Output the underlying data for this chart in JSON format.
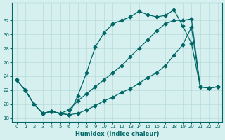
{
  "xlabel": "Humidex (Indice chaleur)",
  "background_color": "#d6f0f0",
  "line_color": "#006666",
  "grid_color": "#b8dada",
  "xlim": [
    -0.5,
    23.5
  ],
  "ylim": [
    17.5,
    34.5
  ],
  "xticks": [
    0,
    1,
    2,
    3,
    4,
    5,
    6,
    7,
    8,
    9,
    10,
    11,
    12,
    13,
    14,
    15,
    16,
    17,
    18,
    19,
    20,
    21,
    22,
    23
  ],
  "yticks": [
    18,
    20,
    22,
    24,
    26,
    28,
    30,
    32
  ],
  "line1_x": [
    0,
    1,
    2,
    3,
    4,
    5,
    6,
    7,
    8,
    9,
    10,
    11,
    12,
    13,
    14,
    15,
    16,
    17,
    18,
    19,
    20,
    21,
    22,
    23
  ],
  "line1_y": [
    23.5,
    22.0,
    20.0,
    18.7,
    19.0,
    18.7,
    18.5,
    21.2,
    24.5,
    28.2,
    30.2,
    31.5,
    32.0,
    32.5,
    33.3,
    32.8,
    32.5,
    32.7,
    33.5,
    31.2,
    28.7,
    22.5,
    22.3,
    22.5
  ],
  "line2_x": [
    0,
    1,
    2,
    3,
    4,
    5,
    6,
    7,
    8,
    9,
    10,
    11,
    12,
    13,
    14,
    15,
    16,
    17,
    18,
    19,
    20,
    21,
    22,
    23
  ],
  "line2_y": [
    23.5,
    22.0,
    20.0,
    18.7,
    19.0,
    18.7,
    19.2,
    20.5,
    21.5,
    22.5,
    23.5,
    24.5,
    25.5,
    26.8,
    28.0,
    29.2,
    30.5,
    31.5,
    32.0,
    32.0,
    32.2,
    22.5,
    22.3,
    22.5
  ],
  "line3_x": [
    0,
    1,
    2,
    3,
    4,
    5,
    6,
    7,
    8,
    9,
    10,
    11,
    12,
    13,
    14,
    15,
    16,
    17,
    18,
    19,
    20,
    21,
    22,
    23
  ],
  "line3_y": [
    23.5,
    22.0,
    20.0,
    18.7,
    19.0,
    18.7,
    18.5,
    18.7,
    19.2,
    19.8,
    20.5,
    21.0,
    21.7,
    22.2,
    23.0,
    23.8,
    24.5,
    25.5,
    27.0,
    28.5,
    31.0,
    22.5,
    22.3,
    22.5
  ],
  "markersize": 2.5,
  "linewidth": 0.9
}
